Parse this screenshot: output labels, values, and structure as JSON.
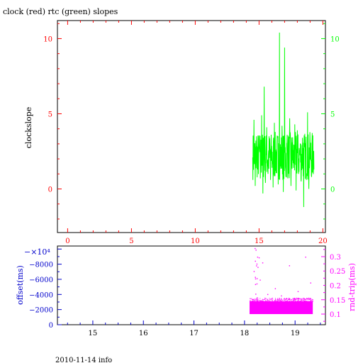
{
  "title": "clock (red) rtc (green) slopes",
  "footer": "2010-11-14 info",
  "colors": {
    "clock": "#ff0000",
    "rtc": "#00ff00",
    "offset_axis": "#0000cc",
    "roundtrip": "#ff00ff",
    "frame": "#000000"
  },
  "chart_data": [
    {
      "type": "line",
      "ylabel": "clockslope",
      "xlim": [
        -0.8,
        20.2
      ],
      "ylim": [
        -2.9,
        11.2
      ],
      "xticks": [
        0,
        5,
        10,
        15,
        20
      ],
      "xtick_labels": [
        "0",
        "5",
        "10",
        "15",
        "20"
      ],
      "yticks": [
        0,
        5,
        10
      ],
      "ytick_labels_left": [
        "0",
        "5",
        "10"
      ],
      "ytick_labels_right": [
        "0",
        "5",
        "10"
      ],
      "series": [
        {
          "color": "#00ff00",
          "x": [
            14.5,
            14.6,
            14.7,
            14.8,
            14.9,
            15.0,
            15.1,
            15.2,
            15.3,
            15.4,
            15.5,
            15.6,
            15.7,
            15.8,
            15.9,
            16.0,
            16.1,
            16.2,
            16.3,
            16.4,
            16.5,
            16.6,
            16.7,
            16.8,
            16.9,
            17.0,
            17.1,
            17.2,
            17.3,
            17.4,
            17.5,
            17.6,
            17.7,
            17.8,
            17.9,
            18.0,
            18.1,
            18.2,
            18.3,
            18.4,
            18.5,
            18.6,
            18.7,
            18.8,
            18.9,
            19.0,
            19.1,
            19.2,
            19.3
          ],
          "y": [
            2.1,
            4.6,
            0.2,
            3.5,
            1.3,
            2.8,
            0.7,
            4.9,
            -0.3,
            6.8,
            0.4,
            4.1,
            1.0,
            3.3,
            0.6,
            2.5,
            0.1,
            4.4,
            1.2,
            3.0,
            0.3,
            10.4,
            1.5,
            4.2,
            -0.2,
            9.4,
            0.8,
            3.6,
            1.1,
            4.7,
            0.2,
            3.1,
            1.4,
            4.3,
            -0.1,
            3.9,
            1.0,
            2.6,
            0.5,
            3.4,
            -1.2,
            2.9,
            0.6,
            5.1,
            0.0,
            3.2,
            0.9,
            2.7,
            1.3
          ]
        }
      ]
    },
    {
      "type": "scatter",
      "ylabel_left": "offset(ms)",
      "ylabel_right": "rnd-trip(ms)",
      "y_multiplier": "−×10⁴",
      "xlim": [
        14.3,
        19.6
      ],
      "xticks": [
        15,
        16,
        17,
        18,
        19
      ],
      "xtick_labels": [
        "15",
        "16",
        "17",
        "18",
        "19"
      ],
      "left_ylim": [
        0,
        10400
      ],
      "left_yticks": [
        0,
        2000,
        4000,
        6000,
        8000
      ],
      "left_ytick_labels": [
        "0",
        "−2000",
        "−4000",
        "−6000",
        "−8000"
      ],
      "right_ylim": [
        0.063,
        0.337
      ],
      "right_yticks": [
        0.1,
        0.15,
        0.2,
        0.25,
        0.3
      ],
      "right_ytick_labels": [
        "0.1",
        "0.15",
        "0.2",
        "0.25",
        "0.3"
      ],
      "series": [
        {
          "color": "#ff00ff",
          "x_range": [
            18.1,
            19.35
          ],
          "band": [
            0.1,
            0.145
          ],
          "outliers": [
            {
              "x": 18.2,
              "y": 0.33
            },
            {
              "x": 18.25,
              "y": 0.3
            },
            {
              "x": 18.18,
              "y": 0.25
            },
            {
              "x": 18.3,
              "y": 0.22
            },
            {
              "x": 18.6,
              "y": 0.19
            },
            {
              "x": 18.88,
              "y": 0.27
            },
            {
              "x": 19.2,
              "y": 0.3
            },
            {
              "x": 19.3,
              "y": 0.21
            },
            {
              "x": 18.45,
              "y": 0.17
            },
            {
              "x": 19.05,
              "y": 0.18
            },
            {
              "x": 18.72,
              "y": 0.165
            },
            {
              "x": 18.35,
              "y": 0.28
            }
          ]
        }
      ]
    }
  ]
}
